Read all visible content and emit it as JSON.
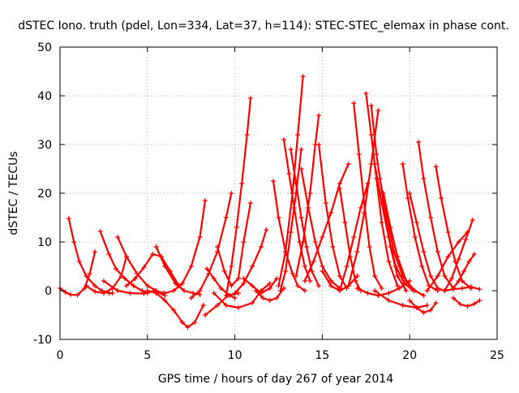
{
  "chart_data": {
    "type": "scatter",
    "title": "dSTEC Iono. truth (pdel, Lon=334, Lat=37, h=114): STEC-STEC_elemax in phase cont.",
    "xlabel": "GPS time / hours of day 267 of year 2014",
    "ylabel": "dSTEC  / TECUs",
    "xlim": [
      0,
      25
    ],
    "ylim": [
      -10,
      50
    ],
    "xticks": [
      0,
      5,
      10,
      15,
      20,
      25
    ],
    "yticks": [
      -10,
      0,
      10,
      20,
      30,
      40,
      50
    ],
    "xtick_labels": [
      "0",
      "5",
      "10",
      "15",
      "20",
      "25"
    ],
    "ytick_labels": [
      "-10",
      "0",
      "10",
      "20",
      "30",
      "40",
      "50"
    ],
    "grid": true,
    "legend": "none",
    "marker": "plus",
    "color": "#ff0000",
    "series": [
      {
        "x": [
          0.0,
          0.3,
          0.6,
          1.0,
          1.4,
          1.7,
          2.0
        ],
        "y": [
          0.5,
          -0.3,
          -0.8,
          -0.9,
          0.5,
          3.5,
          8.0
        ]
      },
      {
        "x": [
          0.5,
          0.8,
          1.1,
          1.5,
          2.0,
          2.4,
          2.8,
          3.0
        ],
        "y": [
          14.8,
          10.0,
          6.0,
          3.0,
          1.0,
          0.0,
          -0.5,
          -0.5
        ]
      },
      {
        "x": [
          1.5,
          2.0,
          2.5,
          3.0,
          3.5,
          3.8
        ],
        "y": [
          1.0,
          -0.2,
          -0.5,
          0.5,
          3.0,
          7.0
        ]
      },
      {
        "x": [
          2.3,
          2.8,
          3.2,
          3.7,
          4.2,
          4.7,
          5.0
        ],
        "y": [
          12.2,
          7.5,
          4.5,
          2.5,
          1.0,
          0.0,
          -0.5
        ]
      },
      {
        "x": [
          3.3,
          3.8,
          4.4,
          5.0,
          5.5,
          5.9
        ],
        "y": [
          11.0,
          7.0,
          3.5,
          1.0,
          0.0,
          -0.5
        ]
      },
      {
        "x": [
          2.5,
          3.3,
          4.0,
          4.8,
          5.4,
          6.0
        ],
        "y": [
          2.0,
          0.0,
          -0.5,
          -0.6,
          0.0,
          -1.0
        ]
      },
      {
        "x": [
          3.8,
          4.3,
          4.8,
          5.3,
          5.8,
          6.3,
          6.8
        ],
        "y": [
          1.0,
          2.5,
          4.8,
          7.5,
          7.0,
          4.0,
          1.0
        ]
      },
      {
        "x": [
          5.5,
          6.0,
          6.6,
          7.1,
          7.6,
          8.0
        ],
        "y": [
          9.0,
          5.0,
          1.5,
          0.0,
          -0.5,
          -0.8
        ]
      },
      {
        "x": [
          6.0,
          6.5,
          7.0,
          7.5,
          8.0,
          8.3
        ],
        "y": [
          -0.5,
          0.0,
          1.5,
          5.0,
          11.0,
          18.5
        ]
      },
      {
        "x": [
          5.0,
          5.5,
          6.0,
          6.5,
          7.0,
          7.3,
          7.7,
          8.2
        ],
        "y": [
          0.0,
          -0.5,
          -2.0,
          -4.0,
          -6.5,
          -7.5,
          -6.5,
          -3.0
        ]
      },
      {
        "x": [
          7.5,
          8.0,
          8.5,
          9.0,
          9.5,
          9.8
        ],
        "y": [
          -1.5,
          0.0,
          3.5,
          8.0,
          15.0,
          20.0
        ]
      },
      {
        "x": [
          8.4,
          8.8,
          9.2,
          9.7,
          10.0
        ],
        "y": [
          4.5,
          2.5,
          0.5,
          -1.0,
          -1.5
        ]
      },
      {
        "x": [
          8.8,
          9.5,
          10.2,
          11.0,
          11.5,
          12.0
        ],
        "y": [
          -0.5,
          -3.0,
          -3.5,
          -2.5,
          0.0,
          1.5
        ]
      },
      {
        "x": [
          8.3,
          9.0,
          9.6,
          10.2
        ],
        "y": [
          -5.0,
          -3.0,
          -1.0,
          -0.5
        ]
      },
      {
        "x": [
          9.0,
          9.4,
          9.8,
          10.2,
          10.5,
          10.9
        ],
        "y": [
          9.0,
          4.0,
          1.0,
          2.5,
          10.0,
          18.0
        ]
      },
      {
        "x": [
          9.5,
          9.8,
          10.1,
          10.4,
          10.7,
          10.9
        ],
        "y": [
          -1.0,
          5.0,
          13.0,
          22.0,
          32.0,
          39.5
        ]
      },
      {
        "x": [
          10.0,
          10.5,
          11.0,
          11.5,
          11.8
        ],
        "y": [
          -0.5,
          1.5,
          5.0,
          9.0,
          12.5
        ]
      },
      {
        "x": [
          10.5,
          11.0,
          11.5,
          12.0,
          12.4
        ],
        "y": [
          2.5,
          1.0,
          -0.5,
          0.5,
          2.5
        ]
      },
      {
        "x": [
          11.2,
          11.6,
          12.0,
          12.4,
          12.8
        ],
        "y": [
          0.0,
          -1.5,
          -2.0,
          -1.5,
          0.5
        ]
      },
      {
        "x": [
          12.2,
          12.5,
          12.9,
          13.3,
          13.6,
          14.0
        ],
        "y": [
          22.5,
          15.0,
          8.0,
          3.5,
          1.0,
          0.0
        ]
      },
      {
        "x": [
          12.6,
          12.9,
          13.2,
          13.5,
          13.8
        ],
        "y": [
          0.0,
          4.0,
          12.0,
          20.0,
          29.0
        ]
      },
      {
        "x": [
          12.8,
          13.1,
          13.4,
          13.7,
          14.0,
          14.3
        ],
        "y": [
          31.0,
          24.0,
          17.0,
          10.0,
          5.0,
          2.0
        ]
      },
      {
        "x": [
          12.5,
          12.9,
          13.3,
          13.6,
          13.9
        ],
        "y": [
          1.0,
          8.0,
          20.0,
          32.0,
          44.0
        ]
      },
      {
        "x": [
          13.2,
          13.5,
          13.8,
          14.1,
          14.4,
          14.8
        ],
        "y": [
          29.0,
          22.0,
          15.0,
          9.0,
          4.0,
          1.0
        ]
      },
      {
        "x": [
          13.5,
          13.9,
          14.3,
          14.6,
          14.8
        ],
        "y": [
          3.0,
          10.0,
          20.0,
          30.0,
          36.0
        ]
      },
      {
        "x": [
          13.8,
          14.2,
          14.6,
          15.0,
          15.5,
          16.0
        ],
        "y": [
          25.0,
          17.0,
          10.0,
          5.0,
          2.0,
          0.5
        ]
      },
      {
        "x": [
          14.0,
          14.5,
          15.0,
          15.5,
          16.0,
          16.5
        ],
        "y": [
          2.0,
          6.0,
          11.0,
          16.0,
          22.0,
          26.0
        ]
      },
      {
        "x": [
          14.8,
          15.2,
          15.6,
          16.0,
          16.4
        ],
        "y": [
          30.0,
          18.0,
          9.0,
          3.0,
          0.5
        ]
      },
      {
        "x": [
          15.0,
          15.5,
          16.0,
          16.5,
          17.0
        ],
        "y": [
          4.0,
          1.0,
          0.0,
          1.0,
          3.0
        ]
      },
      {
        "x": [
          16.0,
          16.3,
          16.6,
          16.9,
          17.2
        ],
        "y": [
          21.0,
          14.0,
          7.0,
          2.0,
          0.0
        ]
      },
      {
        "x": [
          16.0,
          16.4,
          16.8,
          17.2,
          17.6
        ],
        "y": [
          0.0,
          5.0,
          11.0,
          17.0,
          22.0
        ]
      },
      {
        "x": [
          16.8,
          17.1,
          17.4,
          17.7,
          18.0,
          18.4
        ],
        "y": [
          38.5,
          28.0,
          18.0,
          9.0,
          3.0,
          0.5
        ]
      },
      {
        "x": [
          16.5,
          17.0,
          17.4,
          17.8,
          18.2
        ],
        "y": [
          1.0,
          8.0,
          16.0,
          26.0,
          37.0
        ]
      },
      {
        "x": [
          17.5,
          17.8,
          18.1,
          18.4,
          18.8,
          19.3
        ],
        "y": [
          40.5,
          32.0,
          23.0,
          14.0,
          6.0,
          1.0
        ]
      },
      {
        "x": [
          17.8,
          18.1,
          18.5,
          18.9,
          19.3,
          19.8
        ],
        "y": [
          38.0,
          28.0,
          18.0,
          9.0,
          3.0,
          0.0
        ]
      },
      {
        "x": [
          18.0,
          18.4,
          18.8,
          19.2,
          19.7,
          20.2
        ],
        "y": [
          26.0,
          18.0,
          11.0,
          5.0,
          1.5,
          0.0
        ]
      },
      {
        "x": [
          18.3,
          18.7,
          19.1,
          19.6,
          20.1
        ],
        "y": [
          23.0,
          15.0,
          8.0,
          3.0,
          0.5
        ]
      },
      {
        "x": [
          18.5,
          18.9,
          19.3,
          19.8,
          20.3,
          20.8
        ],
        "y": [
          20.0,
          13.0,
          7.0,
          2.0,
          0.0,
          -1.0
        ]
      },
      {
        "x": [
          17.0,
          17.6,
          18.2,
          18.8,
          19.4,
          20.0
        ],
        "y": [
          0.5,
          -0.5,
          -1.0,
          -0.5,
          0.5,
          2.0
        ]
      },
      {
        "x": [
          18.0,
          18.8,
          19.6,
          20.4,
          21.0
        ],
        "y": [
          0.0,
          -2.0,
          -3.0,
          -3.5,
          -3.0
        ]
      },
      {
        "x": [
          19.6,
          19.9,
          20.3,
          20.7,
          21.1,
          21.6
        ],
        "y": [
          26.0,
          19.0,
          11.0,
          5.0,
          1.0,
          0.0
        ]
      },
      {
        "x": [
          20.0,
          20.4,
          20.8,
          21.2,
          21.6,
          22.0
        ],
        "y": [
          20.0,
          14.0,
          8.0,
          3.0,
          0.5,
          0.0
        ]
      },
      {
        "x": [
          20.5,
          20.8,
          21.2,
          21.6,
          22.0,
          22.5
        ],
        "y": [
          30.5,
          23.0,
          15.0,
          8.0,
          3.0,
          0.5
        ]
      },
      {
        "x": [
          20.0,
          20.4,
          20.8,
          21.2,
          21.5
        ],
        "y": [
          -2.0,
          -3.5,
          -4.5,
          -4.0,
          -2.5
        ]
      },
      {
        "x": [
          21.5,
          21.8,
          22.2,
          22.6,
          23.0,
          23.5
        ],
        "y": [
          25.5,
          19.0,
          12.0,
          6.0,
          2.0,
          0.5
        ]
      },
      {
        "x": [
          21.0,
          21.6,
          22.2,
          22.8,
          23.3
        ],
        "y": [
          0.0,
          3.0,
          7.0,
          10.0,
          12.0
        ]
      },
      {
        "x": [
          22.0,
          22.4,
          22.8,
          23.2,
          23.6
        ],
        "y": [
          0.0,
          2.5,
          6.5,
          10.5,
          14.5
        ]
      },
      {
        "x": [
          22.5,
          22.8,
          23.1,
          23.4,
          23.7
        ],
        "y": [
          0.5,
          2.0,
          4.0,
          6.0,
          7.5
        ]
      },
      {
        "x": [
          22.0,
          22.5,
          23.0,
          23.5,
          24.0
        ],
        "y": [
          0.0,
          0.3,
          0.5,
          0.8,
          0.3
        ]
      },
      {
        "x": [
          22.5,
          22.9,
          23.3,
          23.7,
          24.0
        ],
        "y": [
          -1.5,
          -2.8,
          -3.2,
          -2.7,
          -2.0
        ]
      }
    ]
  }
}
